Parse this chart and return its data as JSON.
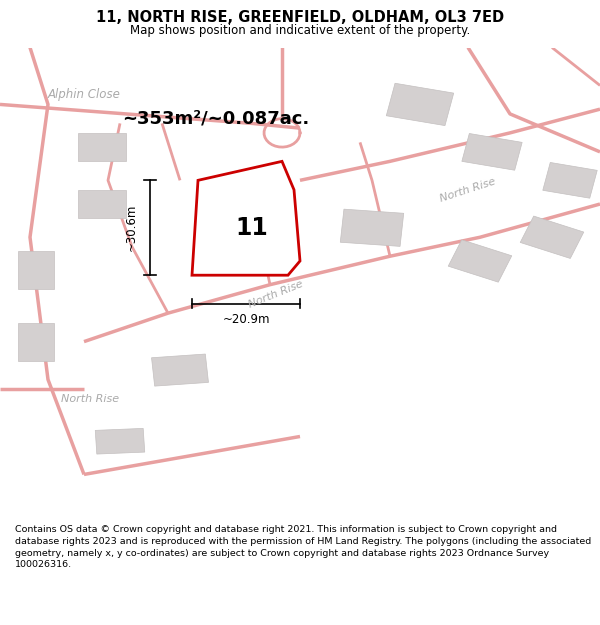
{
  "title": "11, NORTH RISE, GREENFIELD, OLDHAM, OL3 7ED",
  "subtitle": "Map shows position and indicative extent of the property.",
  "footer": "Contains OS data © Crown copyright and database right 2021. This information is subject to Crown copyright and database rights 2023 and is reproduced with the permission of HM Land Registry. The polygons (including the associated geometry, namely x, y co-ordinates) are subject to Crown copyright and database rights 2023 Ordnance Survey 100026316.",
  "bg_color": "#ffffff",
  "map_bg_color": "#f0eeee",
  "road_color": "#e8a0a0",
  "building_color": "#d4d0d0",
  "building_edge_color": "#c4c0c0",
  "property_color": "#ffffff",
  "property_edge_color": "#cc0000",
  "area_text": "~353m²/~0.087ac.",
  "number_label": "11",
  "dim_width": "~20.9m",
  "dim_height": "~30.6m",
  "street_label_alphin": "Alphin Close",
  "street_label_nr1": "North Rise",
  "street_label_nr2": "North Rise",
  "street_label_nr3": "North Rise"
}
